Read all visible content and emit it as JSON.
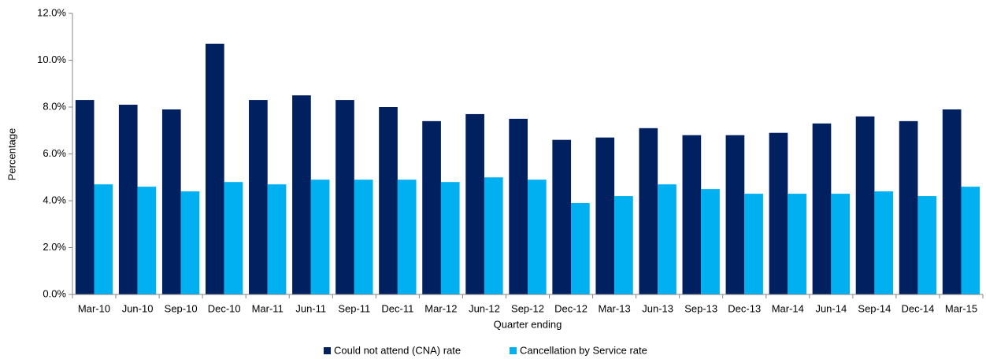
{
  "chart_data": {
    "type": "bar",
    "x_label": "Quarter ending",
    "y_label": "Percentage",
    "categories": [
      "Mar-10",
      "Jun-10",
      "Sep-10",
      "Dec-10",
      "Mar-11",
      "Jun-11",
      "Sep-11",
      "Dec-11",
      "Mar-12",
      "Jun-12",
      "Sep-12",
      "Dec-12",
      "Mar-13",
      "Jun-13",
      "Sep-13",
      "Dec-13",
      "Mar-14",
      "Jun-14",
      "Sep-14",
      "Dec-14",
      "Mar-15"
    ],
    "series": [
      {
        "name": "Could not attend (CNA) rate",
        "color": "#002060",
        "values": [
          8.3,
          8.1,
          7.9,
          10.7,
          8.3,
          8.5,
          8.3,
          8.0,
          7.4,
          7.7,
          7.5,
          6.6,
          6.7,
          7.1,
          6.8,
          6.8,
          6.9,
          7.3,
          7.6,
          7.4,
          7.9
        ]
      },
      {
        "name": "Cancellation by Service rate",
        "color": "#00b0f0",
        "values": [
          4.7,
          4.6,
          4.4,
          4.8,
          4.7,
          4.9,
          4.9,
          4.9,
          4.8,
          5.0,
          4.9,
          3.9,
          4.2,
          4.7,
          4.5,
          4.3,
          4.3,
          4.3,
          4.4,
          4.2,
          4.6
        ]
      }
    ],
    "ylim": [
      0,
      12
    ],
    "yticks": [
      {
        "value": 0,
        "label": "0.0%"
      },
      {
        "value": 2,
        "label": "2.0%"
      },
      {
        "value": 4,
        "label": "4.0%"
      },
      {
        "value": 6,
        "label": "6.0%"
      },
      {
        "value": 8,
        "label": "8.0%"
      },
      {
        "value": 10,
        "label": "10.0%"
      },
      {
        "value": 12,
        "label": "12.0%"
      }
    ],
    "legend": "bottom",
    "grid": false
  }
}
